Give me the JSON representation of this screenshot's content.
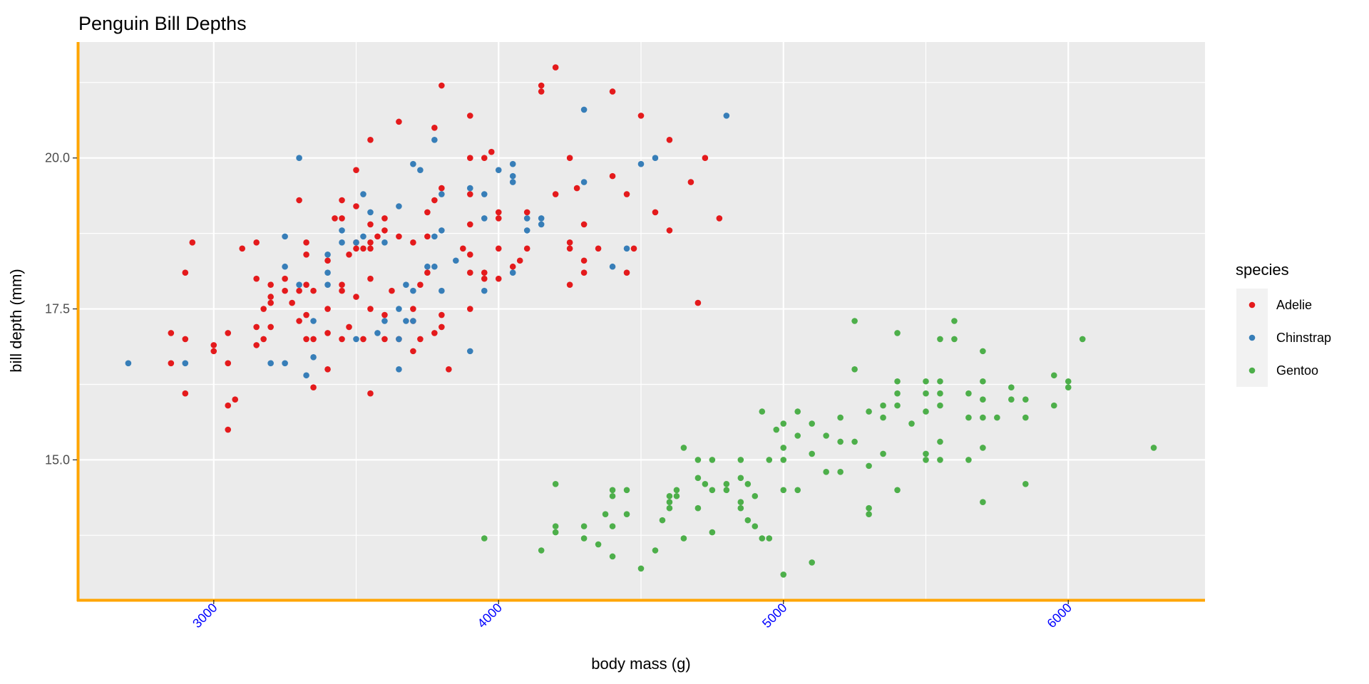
{
  "chart_data": {
    "type": "scatter",
    "title": "Penguin Bill Depths",
    "xlabel": "body mass (g)",
    "ylabel": "bill depth (mm)",
    "xlim": [
      2520,
      6480
    ],
    "ylim": [
      12.68,
      21.92
    ],
    "x_ticks": [
      3000,
      4000,
      5000,
      6000
    ],
    "x_tick_labels": [
      "3000",
      "4000",
      "5000",
      "6000"
    ],
    "y_ticks": [
      15.0,
      17.5,
      20.0
    ],
    "y_tick_labels": [
      "15.0",
      "17.5",
      "20.0"
    ],
    "grid": true,
    "legend_title": "species",
    "legend_position": "right",
    "colors": {
      "axis_line": "#FFA500",
      "x_tick_label": "#0000FF",
      "panel": "#EBEBEB"
    },
    "series": [
      {
        "name": "Adelie",
        "color": "#E41A1C",
        "points": [
          [
            2850,
            17.1
          ],
          [
            2850,
            16.6
          ],
          [
            2900,
            17.0
          ],
          [
            2900,
            18.1
          ],
          [
            2900,
            16.1
          ],
          [
            2925,
            18.6
          ],
          [
            3000,
            16.9
          ],
          [
            3000,
            16.8
          ],
          [
            3050,
            17.1
          ],
          [
            3050,
            16.6
          ],
          [
            3050,
            15.9
          ],
          [
            3050,
            15.5
          ],
          [
            3075,
            16.0
          ],
          [
            3100,
            18.5
          ],
          [
            3150,
            18.6
          ],
          [
            3150,
            18.0
          ],
          [
            3150,
            17.2
          ],
          [
            3150,
            16.9
          ],
          [
            3175,
            17.5
          ],
          [
            3175,
            17.0
          ],
          [
            3200,
            17.9
          ],
          [
            3200,
            17.7
          ],
          [
            3200,
            17.6
          ],
          [
            3200,
            17.2
          ],
          [
            3250,
            18.0
          ],
          [
            3250,
            17.8
          ],
          [
            3275,
            17.6
          ],
          [
            3300,
            19.3
          ],
          [
            3300,
            17.8
          ],
          [
            3300,
            17.3
          ],
          [
            3325,
            18.6
          ],
          [
            3325,
            18.4
          ],
          [
            3325,
            17.9
          ],
          [
            3325,
            17.4
          ],
          [
            3325,
            17.0
          ],
          [
            3350,
            17.0
          ],
          [
            3350,
            17.8
          ],
          [
            3350,
            16.2
          ],
          [
            3400,
            18.3
          ],
          [
            3400,
            17.5
          ],
          [
            3400,
            17.1
          ],
          [
            3400,
            16.5
          ],
          [
            3425,
            19.0
          ],
          [
            3450,
            19.3
          ],
          [
            3450,
            19.0
          ],
          [
            3450,
            17.9
          ],
          [
            3450,
            17.8
          ],
          [
            3450,
            17.0
          ],
          [
            3475,
            18.4
          ],
          [
            3475,
            17.2
          ],
          [
            3500,
            19.8
          ],
          [
            3500,
            19.2
          ],
          [
            3500,
            18.6
          ],
          [
            3500,
            18.5
          ],
          [
            3500,
            17.7
          ],
          [
            3525,
            18.5
          ],
          [
            3525,
            17.0
          ],
          [
            3550,
            20.3
          ],
          [
            3550,
            18.9
          ],
          [
            3550,
            18.6
          ],
          [
            3550,
            18.5
          ],
          [
            3550,
            18.0
          ],
          [
            3550,
            17.5
          ],
          [
            3550,
            16.1
          ],
          [
            3575,
            18.7
          ],
          [
            3600,
            19.0
          ],
          [
            3600,
            18.8
          ],
          [
            3600,
            17.4
          ],
          [
            3600,
            17.0
          ],
          [
            3625,
            17.8
          ],
          [
            3650,
            20.6
          ],
          [
            3650,
            18.7
          ],
          [
            3650,
            17.0
          ],
          [
            3700,
            18.6
          ],
          [
            3700,
            17.5
          ],
          [
            3700,
            17.3
          ],
          [
            3700,
            16.8
          ],
          [
            3725,
            17.9
          ],
          [
            3725,
            17.0
          ],
          [
            3750,
            19.1
          ],
          [
            3750,
            18.7
          ],
          [
            3750,
            18.1
          ],
          [
            3775,
            20.5
          ],
          [
            3775,
            19.3
          ],
          [
            3775,
            17.1
          ],
          [
            3800,
            21.2
          ],
          [
            3800,
            19.5
          ],
          [
            3800,
            17.4
          ],
          [
            3800,
            17.2
          ],
          [
            3825,
            16.5
          ],
          [
            3875,
            18.5
          ],
          [
            3900,
            20.7
          ],
          [
            3900,
            20.0
          ],
          [
            3900,
            19.4
          ],
          [
            3900,
            18.9
          ],
          [
            3900,
            18.4
          ],
          [
            3900,
            18.1
          ],
          [
            3900,
            17.5
          ],
          [
            3950,
            20.0
          ],
          [
            3950,
            18.1
          ],
          [
            3950,
            18.0
          ],
          [
            3975,
            20.1
          ],
          [
            4000,
            19.1
          ],
          [
            4000,
            19.0
          ],
          [
            4000,
            18.5
          ],
          [
            4000,
            18.0
          ],
          [
            4050,
            18.2
          ],
          [
            4075,
            18.3
          ],
          [
            4100,
            19.1
          ],
          [
            4100,
            18.5
          ],
          [
            4150,
            21.2
          ],
          [
            4150,
            21.1
          ],
          [
            4200,
            19.4
          ],
          [
            4200,
            21.5
          ],
          [
            4250,
            20.0
          ],
          [
            4250,
            18.6
          ],
          [
            4250,
            18.5
          ],
          [
            4250,
            17.9
          ],
          [
            4275,
            19.5
          ],
          [
            4300,
            18.9
          ],
          [
            4300,
            18.3
          ],
          [
            4300,
            18.1
          ],
          [
            4350,
            18.5
          ],
          [
            4400,
            21.1
          ],
          [
            4400,
            19.7
          ],
          [
            4450,
            19.4
          ],
          [
            4450,
            18.1
          ],
          [
            4475,
            18.5
          ],
          [
            4500,
            20.7
          ],
          [
            4550,
            19.1
          ],
          [
            4600,
            18.8
          ],
          [
            4600,
            20.3
          ],
          [
            4675,
            19.6
          ],
          [
            4725,
            20.0
          ],
          [
            4775,
            19.0
          ],
          [
            4700,
            17.6
          ]
        ]
      },
      {
        "name": "Chinstrap",
        "color": "#377EB8",
        "points": [
          [
            2700,
            16.6
          ],
          [
            2900,
            16.6
          ],
          [
            3250,
            18.7
          ],
          [
            3250,
            18.2
          ],
          [
            3250,
            16.6
          ],
          [
            3200,
            16.6
          ],
          [
            3300,
            20.0
          ],
          [
            3300,
            17.9
          ],
          [
            3325,
            16.4
          ],
          [
            3350,
            16.7
          ],
          [
            3350,
            17.3
          ],
          [
            3400,
            18.4
          ],
          [
            3400,
            18.1
          ],
          [
            3400,
            17.9
          ],
          [
            3450,
            18.8
          ],
          [
            3450,
            18.6
          ],
          [
            3500,
            18.6
          ],
          [
            3500,
            17.0
          ],
          [
            3525,
            19.4
          ],
          [
            3525,
            18.7
          ],
          [
            3550,
            19.1
          ],
          [
            3575,
            17.1
          ],
          [
            3600,
            18.6
          ],
          [
            3600,
            17.3
          ],
          [
            3650,
            19.2
          ],
          [
            3650,
            17.5
          ],
          [
            3650,
            17.0
          ],
          [
            3650,
            16.5
          ],
          [
            3675,
            17.9
          ],
          [
            3675,
            17.3
          ],
          [
            3700,
            19.9
          ],
          [
            3700,
            17.8
          ],
          [
            3700,
            17.3
          ],
          [
            3725,
            19.8
          ],
          [
            3750,
            18.2
          ],
          [
            3775,
            20.3
          ],
          [
            3775,
            18.2
          ],
          [
            3775,
            18.7
          ],
          [
            3800,
            19.4
          ],
          [
            3800,
            18.8
          ],
          [
            3800,
            17.8
          ],
          [
            3850,
            18.3
          ],
          [
            3900,
            19.5
          ],
          [
            3900,
            16.8
          ],
          [
            3950,
            19.4
          ],
          [
            3950,
            19.0
          ],
          [
            3950,
            17.8
          ],
          [
            4000,
            19.8
          ],
          [
            4050,
            19.9
          ],
          [
            4050,
            19.7
          ],
          [
            4050,
            19.6
          ],
          [
            4050,
            18.1
          ],
          [
            4100,
            19.0
          ],
          [
            4100,
            18.8
          ],
          [
            4150,
            19.0
          ],
          [
            4150,
            18.9
          ],
          [
            4300,
            20.8
          ],
          [
            4300,
            19.6
          ],
          [
            4400,
            18.2
          ],
          [
            4450,
            18.5
          ],
          [
            4500,
            19.9
          ],
          [
            4550,
            20.0
          ],
          [
            4800,
            20.7
          ]
        ]
      },
      {
        "name": "Gentoo",
        "color": "#4DAF4A",
        "points": [
          [
            3950,
            13.7
          ],
          [
            4150,
            13.5
          ],
          [
            4200,
            14.6
          ],
          [
            4200,
            13.9
          ],
          [
            4200,
            13.8
          ],
          [
            4300,
            13.9
          ],
          [
            4300,
            13.7
          ],
          [
            4350,
            13.6
          ],
          [
            4375,
            14.1
          ],
          [
            4400,
            14.5
          ],
          [
            4400,
            14.4
          ],
          [
            4400,
            13.9
          ],
          [
            4400,
            13.4
          ],
          [
            4450,
            14.5
          ],
          [
            4450,
            14.1
          ],
          [
            4500,
            13.2
          ],
          [
            4550,
            13.5
          ],
          [
            4575,
            14.0
          ],
          [
            4600,
            14.4
          ],
          [
            4600,
            14.3
          ],
          [
            4600,
            14.2
          ],
          [
            4625,
            14.5
          ],
          [
            4625,
            14.4
          ],
          [
            4650,
            15.2
          ],
          [
            4650,
            13.7
          ],
          [
            4700,
            15.0
          ],
          [
            4700,
            14.7
          ],
          [
            4700,
            14.2
          ],
          [
            4725,
            14.6
          ],
          [
            4750,
            15.0
          ],
          [
            4750,
            14.5
          ],
          [
            4750,
            13.8
          ],
          [
            4800,
            14.6
          ],
          [
            4800,
            14.5
          ],
          [
            4850,
            15.0
          ],
          [
            4850,
            14.7
          ],
          [
            4850,
            14.3
          ],
          [
            4850,
            14.2
          ],
          [
            4875,
            14.6
          ],
          [
            4875,
            14.0
          ],
          [
            4900,
            14.4
          ],
          [
            4900,
            13.9
          ],
          [
            4925,
            15.8
          ],
          [
            4925,
            13.7
          ],
          [
            4950,
            15.0
          ],
          [
            4950,
            13.7
          ],
          [
            4975,
            15.5
          ],
          [
            5000,
            15.6
          ],
          [
            5000,
            15.2
          ],
          [
            5000,
            15.0
          ],
          [
            5000,
            14.5
          ],
          [
            5000,
            13.1
          ],
          [
            5050,
            15.8
          ],
          [
            5050,
            15.4
          ],
          [
            5050,
            14.5
          ],
          [
            5100,
            15.6
          ],
          [
            5100,
            15.1
          ],
          [
            5100,
            13.3
          ],
          [
            5150,
            15.4
          ],
          [
            5150,
            14.8
          ],
          [
            5200,
            15.7
          ],
          [
            5200,
            15.3
          ],
          [
            5200,
            14.8
          ],
          [
            5250,
            17.3
          ],
          [
            5250,
            16.5
          ],
          [
            5250,
            15.3
          ],
          [
            5300,
            15.8
          ],
          [
            5300,
            14.9
          ],
          [
            5300,
            14.2
          ],
          [
            5300,
            14.1
          ],
          [
            5350,
            15.9
          ],
          [
            5350,
            15.7
          ],
          [
            5350,
            15.1
          ],
          [
            5400,
            17.1
          ],
          [
            5400,
            16.3
          ],
          [
            5400,
            16.1
          ],
          [
            5400,
            15.9
          ],
          [
            5400,
            14.5
          ],
          [
            5450,
            15.6
          ],
          [
            5500,
            16.3
          ],
          [
            5500,
            16.1
          ],
          [
            5500,
            15.8
          ],
          [
            5500,
            15.1
          ],
          [
            5500,
            15.0
          ],
          [
            5550,
            17.0
          ],
          [
            5550,
            16.3
          ],
          [
            5550,
            16.1
          ],
          [
            5550,
            15.9
          ],
          [
            5550,
            15.3
          ],
          [
            5550,
            15.0
          ],
          [
            5600,
            17.3
          ],
          [
            5600,
            17.0
          ],
          [
            5650,
            16.1
          ],
          [
            5650,
            15.7
          ],
          [
            5650,
            15.0
          ],
          [
            5700,
            16.8
          ],
          [
            5700,
            16.3
          ],
          [
            5700,
            16.0
          ],
          [
            5700,
            15.7
          ],
          [
            5700,
            15.2
          ],
          [
            5700,
            14.3
          ],
          [
            5750,
            15.7
          ],
          [
            5800,
            16.2
          ],
          [
            5800,
            16.0
          ],
          [
            5850,
            16.0
          ],
          [
            5850,
            15.7
          ],
          [
            5850,
            14.6
          ],
          [
            5950,
            16.4
          ],
          [
            5950,
            15.9
          ],
          [
            6000,
            16.3
          ],
          [
            6000,
            16.2
          ],
          [
            6050,
            17.0
          ],
          [
            6300,
            15.2
          ]
        ]
      }
    ]
  }
}
